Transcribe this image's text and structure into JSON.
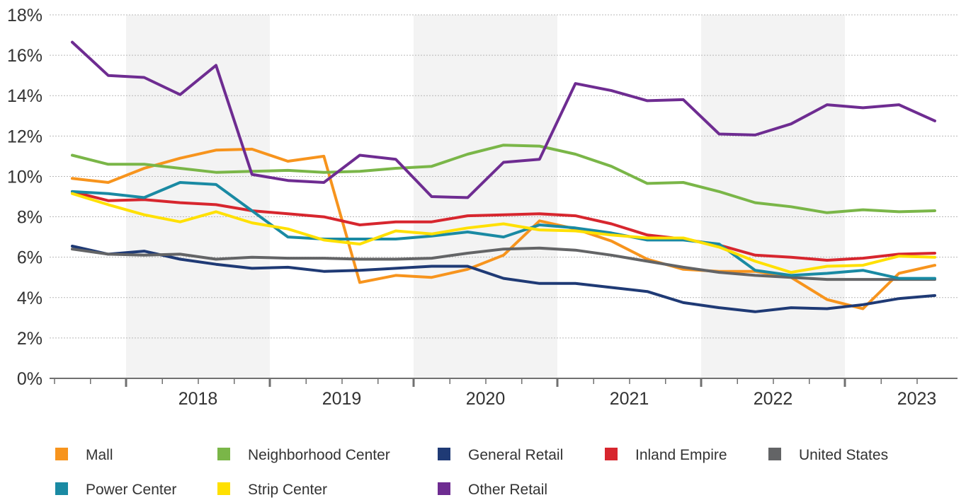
{
  "chart_data": {
    "type": "line",
    "title": "",
    "xlabel": "",
    "ylabel": "",
    "x_ticks": [
      "2018",
      "2019",
      "2020",
      "2021",
      "2022",
      "2023"
    ],
    "y_ticks": [
      "0%",
      "2%",
      "4%",
      "6%",
      "8%",
      "10%",
      "12%",
      "14%",
      "16%",
      "18%"
    ],
    "ylim": [
      0,
      18
    ],
    "grid": "horizontal",
    "shaded_years": [
      "2018",
      "2020",
      "2022"
    ],
    "legend_position": "bottom",
    "x": [
      "2017 Q2",
      "2017 Q3",
      "2017 Q4",
      "2018 Q1",
      "2018 Q2",
      "2018 Q3",
      "2018 Q4",
      "2019 Q1",
      "2019 Q2",
      "2019 Q3",
      "2019 Q4",
      "2020 Q1",
      "2020 Q2",
      "2020 Q3",
      "2020 Q4",
      "2021 Q1",
      "2021 Q2",
      "2021 Q3",
      "2021 Q4",
      "2022 Q1",
      "2022 Q2",
      "2022 Q3",
      "2022 Q4",
      "2023 Q1",
      "2023 Q2"
    ],
    "series": [
      {
        "name": "Mall",
        "color": "#f7941d",
        "values": [
          9.9,
          9.7,
          10.4,
          10.9,
          11.3,
          11.35,
          10.75,
          11.0,
          4.75,
          5.1,
          5.0,
          5.4,
          6.1,
          7.8,
          7.4,
          6.8,
          5.9,
          5.4,
          5.3,
          5.3,
          5.0,
          3.9,
          3.45,
          5.2,
          5.6
        ]
      },
      {
        "name": "Neighborhood Center",
        "color": "#7ab648",
        "values": [
          11.05,
          10.6,
          10.6,
          10.4,
          10.2,
          10.25,
          10.3,
          10.2,
          10.25,
          10.4,
          10.5,
          11.1,
          11.55,
          11.5,
          11.1,
          10.5,
          9.65,
          9.7,
          9.25,
          8.7,
          8.5,
          8.2,
          8.35,
          8.25,
          8.3
        ]
      },
      {
        "name": "General Retail",
        "color": "#1f3a75",
        "values": [
          6.55,
          6.15,
          6.3,
          5.9,
          5.65,
          5.45,
          5.5,
          5.3,
          5.35,
          5.45,
          5.55,
          5.55,
          4.95,
          4.7,
          4.7,
          4.5,
          4.3,
          3.75,
          3.5,
          3.3,
          3.5,
          3.45,
          3.65,
          3.95,
          4.1
        ]
      },
      {
        "name": "Inland Empire",
        "color": "#d7262e",
        "values": [
          9.25,
          8.8,
          8.85,
          8.7,
          8.6,
          8.3,
          8.15,
          8.0,
          7.6,
          7.75,
          7.75,
          8.05,
          8.1,
          8.15,
          8.05,
          7.65,
          7.1,
          6.9,
          6.6,
          6.1,
          6.0,
          5.85,
          5.95,
          6.15,
          6.2
        ]
      },
      {
        "name": "United States",
        "color": "#636466",
        "values": [
          6.4,
          6.15,
          6.1,
          6.15,
          5.9,
          6.0,
          5.95,
          5.95,
          5.9,
          5.9,
          5.95,
          6.2,
          6.4,
          6.45,
          6.35,
          6.1,
          5.8,
          5.5,
          5.25,
          5.1,
          5.0,
          4.9,
          4.9,
          4.9,
          4.9
        ]
      },
      {
        "name": "Power Center",
        "color": "#1a8aa3",
        "values": [
          9.25,
          9.15,
          8.95,
          9.7,
          9.6,
          8.3,
          7.0,
          6.9,
          6.9,
          6.9,
          7.05,
          7.25,
          7.0,
          7.6,
          7.45,
          7.2,
          6.85,
          6.85,
          6.65,
          5.35,
          5.1,
          5.2,
          5.35,
          4.95,
          4.95
        ]
      },
      {
        "name": "Strip Center",
        "color": "#ffe000",
        "values": [
          9.15,
          8.6,
          8.1,
          7.75,
          8.25,
          7.7,
          7.4,
          6.85,
          6.65,
          7.3,
          7.15,
          7.45,
          7.65,
          7.35,
          7.3,
          7.1,
          6.95,
          6.95,
          6.5,
          5.8,
          5.25,
          5.55,
          5.6,
          6.05,
          6.0
        ]
      },
      {
        "name": "Other Retail",
        "color": "#6e2c91",
        "values": [
          16.65,
          15.0,
          14.9,
          14.05,
          15.5,
          10.1,
          9.8,
          9.7,
          11.05,
          10.85,
          9.0,
          8.95,
          10.7,
          10.85,
          14.6,
          14.25,
          13.75,
          13.8,
          12.1,
          12.05,
          12.6,
          13.55,
          13.4,
          13.55,
          12.75
        ]
      }
    ]
  }
}
